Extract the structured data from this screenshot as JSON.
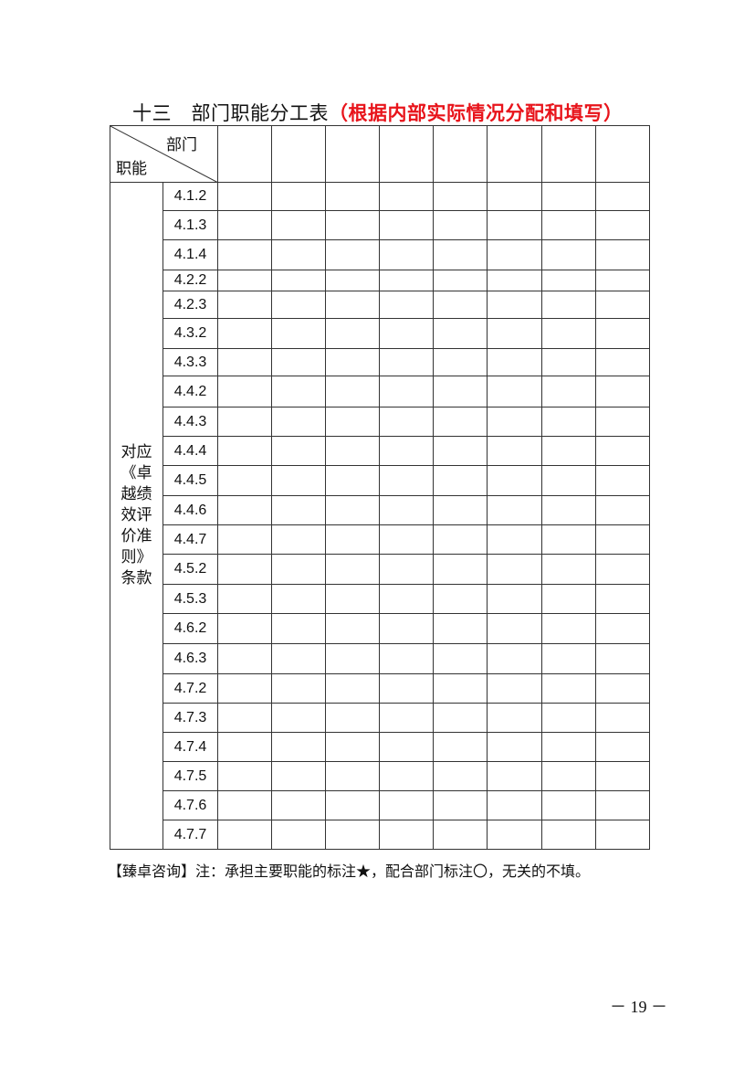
{
  "title": {
    "main": "十三　部门职能分工表",
    "highlight": "（根据内部实际情况分配和填写）",
    "highlight_color": "#e8141b"
  },
  "table": {
    "corner_top": "部门",
    "corner_bottom": "职能",
    "side_label": "对应《卓越绩效评价准则》条款",
    "department_columns": 8,
    "rows": [
      "4.1.2",
      "4.1.3",
      "4.1.4",
      "4.2.2",
      "4.2.3",
      "4.3.2",
      "4.3.3",
      "4.4.2",
      "4.4.3",
      "4.4.4",
      "4.4.5",
      "4.4.6",
      "4.4.7",
      "4.5.2",
      "4.5.3",
      "4.6.2",
      "4.6.3",
      "4.7.2",
      "4.7.3",
      "4.7.4",
      "4.7.5",
      "4.7.6",
      "4.7.7"
    ]
  },
  "note": "【臻卓咨询】注：承担主要职能的标注★，配合部门标注〇，无关的不填。",
  "page_number": "－ 19 －"
}
